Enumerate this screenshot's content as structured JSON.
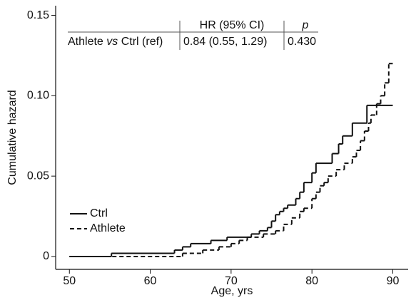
{
  "chart_data": {
    "type": "step",
    "xlabel": "Age, yrs",
    "ylabel": "Cumulative hazard",
    "xlim": [
      48.3,
      91.9
    ],
    "ylim": [
      -0.008,
      0.156
    ],
    "xticks": [
      50,
      60,
      70,
      80,
      90
    ],
    "yticks": [
      0,
      0.05,
      {
        "value": 0.1,
        "label": "0.10"
      },
      0.15
    ],
    "legend": "left",
    "series": [
      {
        "name": "Ctrl",
        "color": "#111111",
        "dash": false,
        "x": [
          50,
          55.2,
          63,
          64,
          65,
          67.5,
          69.5,
          72.5,
          73.5,
          74.5,
          75,
          75.5,
          76,
          76.5,
          77,
          78,
          78.5,
          79,
          80,
          80.5,
          82.5,
          83.3,
          83.8,
          85,
          86.8,
          90
        ],
        "values": [
          0,
          0.002,
          0.004,
          0.006,
          0.008,
          0.01,
          0.012,
          0.014,
          0.016,
          0.018,
          0.022,
          0.026,
          0.028,
          0.03,
          0.032,
          0.036,
          0.04,
          0.046,
          0.052,
          0.058,
          0.064,
          0.07,
          0.075,
          0.083,
          0.094,
          0.094
        ]
      },
      {
        "name": "Athlete",
        "color": "#111111",
        "dash": true,
        "x": [
          50,
          64,
          66.5,
          68.5,
          70,
          71,
          72,
          74,
          75.5,
          76.5,
          77.5,
          78.5,
          79,
          80,
          80.5,
          81,
          81.5,
          82,
          83,
          84,
          85,
          85.5,
          86,
          86.5,
          87,
          87.3,
          88,
          88.5,
          89,
          89.5,
          90
        ],
        "values": [
          0,
          0.002,
          0.004,
          0.006,
          0.008,
          0.01,
          0.012,
          0.014,
          0.016,
          0.02,
          0.024,
          0.028,
          0.03,
          0.036,
          0.04,
          0.044,
          0.046,
          0.05,
          0.054,
          0.058,
          0.062,
          0.066,
          0.072,
          0.078,
          0.083,
          0.088,
          0.095,
          0.1,
          0.108,
          0.12,
          0.12
        ]
      }
    ]
  },
  "table": {
    "columns": [
      "HR (95% CI)",
      "p"
    ],
    "rows": [
      {
        "label_parts": [
          "Athlete",
          "vs",
          "Ctrl (ref)"
        ],
        "cells": [
          "0.84 (0.55, 1.29)",
          "0.430"
        ]
      }
    ]
  }
}
